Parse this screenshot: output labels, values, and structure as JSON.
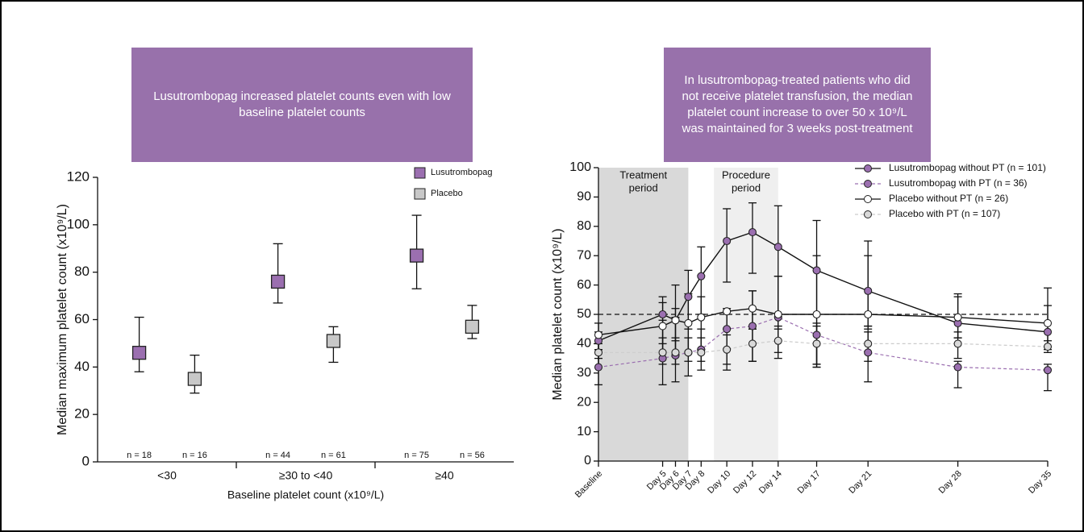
{
  "chart_data": [
    {
      "type": "errorbar",
      "title": "Lusutrombopag increased platelet counts even with low baseline platelet counts",
      "y_label": "Median maximum platelet count (x10⁹/L)",
      "x_label": "Baseline platelet count (x10⁹/L)",
      "categories": [
        "<30",
        "≥30 to <40",
        "≥40"
      ],
      "series": [
        {
          "name": "Lusutrombopag",
          "color": "#9b6fb0",
          "values": [
            46,
            76,
            87
          ],
          "lower": [
            38,
            67,
            73
          ],
          "upper": [
            61,
            92,
            104
          ],
          "n_labels": [
            "n = 18",
            "n = 44",
            "n = 75"
          ]
        },
        {
          "name": "Placebo",
          "color": "#c8c8c8",
          "values": [
            35,
            51,
            57
          ],
          "lower": [
            29,
            42,
            52
          ],
          "upper": [
            45,
            57,
            66
          ],
          "n_labels": [
            "n = 16",
            "n = 61",
            "n = 56"
          ]
        }
      ],
      "ylim": [
        0,
        120
      ],
      "yticks": [
        0,
        20,
        40,
        60,
        80,
        100,
        120
      ],
      "legend": "top-right"
    },
    {
      "type": "line",
      "title": "In lusutrombopag-treated patients who did not receive platelet transfusion, the median platelet count increase to over 50 x 10⁹/L was maintained for 3 weeks post-treatment",
      "y_label": "Median platelet count (x10⁹/L)",
      "x": [
        0,
        5,
        6,
        7,
        8,
        10,
        12,
        14,
        17,
        21,
        28,
        35
      ],
      "xlim": [
        0,
        35
      ],
      "xticks": [
        {
          "value": 0,
          "label": "Baseline"
        },
        {
          "value": 5,
          "label": "Day 5"
        },
        {
          "value": 6,
          "label": "Day 6"
        },
        {
          "value": 7,
          "label": "Day 7"
        },
        {
          "value": 8,
          "label": "Day 8"
        },
        {
          "value": 10,
          "label": "Day 10"
        },
        {
          "value": 12,
          "label": "Day 12"
        },
        {
          "value": 14,
          "label": "Day 14"
        },
        {
          "value": 17,
          "label": "Day 17"
        },
        {
          "value": 21,
          "label": "Day 21"
        },
        {
          "value": 28,
          "label": "Day 28"
        },
        {
          "value": 35,
          "label": "Day 35"
        }
      ],
      "ylim": [
        0,
        100
      ],
      "yticks": [
        0,
        10,
        20,
        30,
        40,
        50,
        60,
        70,
        80,
        90,
        100
      ],
      "hline": 50,
      "shaded_regions": [
        {
          "label": [
            "Treatment",
            "period"
          ],
          "x": [
            0,
            7
          ],
          "color": "#d9d9d9"
        },
        {
          "label": [
            "Procedure",
            "period"
          ],
          "x": [
            9,
            14
          ],
          "color": "#efefef"
        }
      ],
      "series": [
        {
          "name": "Lusutrombopag without PT (n = 101)",
          "color": "#9b6fb0",
          "line_color": "#111111",
          "dashed": false,
          "values": [
            41,
            50,
            48,
            56,
            63,
            75,
            78,
            73,
            65,
            58,
            47,
            44
          ],
          "lower": [
            35,
            40,
            41,
            45,
            50,
            61,
            64,
            50,
            33,
            45,
            42,
            39
          ],
          "upper": [
            44,
            56,
            60,
            65,
            73,
            86,
            88,
            87,
            82,
            75,
            56,
            59
          ]
        },
        {
          "name": "Lusutrombopag with PT (n = 36)",
          "color": "#9b6fb0",
          "line_color": "#9b6fb0",
          "dashed": true,
          "values": [
            32,
            35,
            36,
            37,
            38,
            45,
            46,
            49,
            43,
            37,
            32,
            31
          ],
          "lower": [
            26,
            26,
            27,
            29,
            31,
            31,
            34,
            35,
            32,
            27,
            25,
            24
          ],
          "upper": [
            38,
            48,
            49,
            47,
            45,
            51,
            58,
            63,
            47,
            46,
            34,
            33
          ]
        },
        {
          "name": "Placebo without PT (n = 26)",
          "color": "#ffffff",
          "line_color": "#111111",
          "dashed": false,
          "values": [
            43,
            46,
            48,
            47,
            49,
            51,
            52,
            50,
            50,
            50,
            49,
            47
          ],
          "lower": [
            38,
            35,
            36,
            37,
            38,
            45,
            45,
            45,
            33,
            46,
            42,
            38
          ],
          "upper": [
            47,
            54,
            52,
            57,
            56,
            52,
            58,
            63,
            70,
            70,
            57,
            53
          ]
        },
        {
          "name": "Placebo with PT (n = 107)",
          "color": "#d9d9d9",
          "line_color": "#cccccc",
          "dashed": true,
          "values": [
            37,
            37,
            37,
            37,
            37,
            38,
            40,
            41,
            40,
            40,
            40,
            39
          ],
          "lower": [
            32,
            33,
            33,
            34,
            34,
            33,
            34,
            37,
            32,
            34,
            35,
            37
          ],
          "upper": [
            40,
            42,
            42,
            42,
            42,
            43,
            45,
            46,
            46,
            44,
            44,
            41
          ]
        }
      ],
      "legend": "top-right"
    }
  ]
}
